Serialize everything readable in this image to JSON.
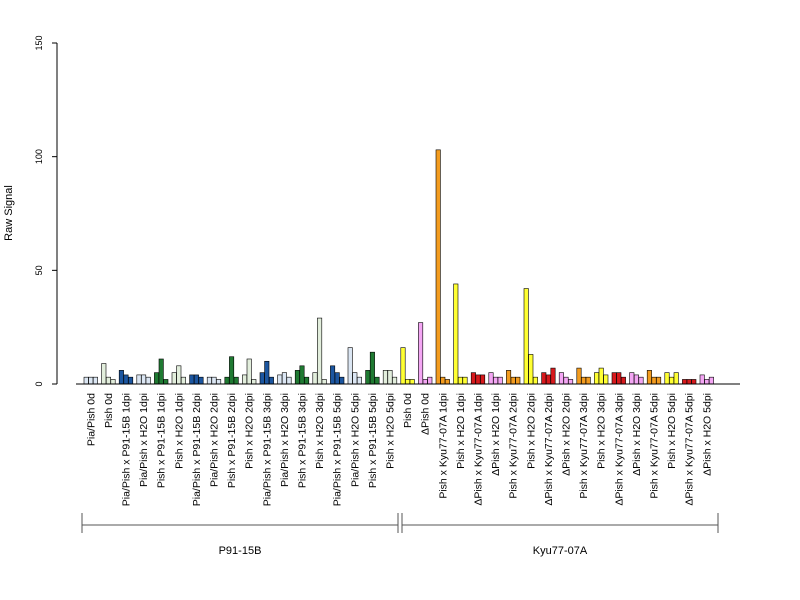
{
  "chart_data": {
    "type": "bar",
    "ylabel": "Raw Signal",
    "ylim": [
      0,
      150
    ],
    "yticks": [
      0,
      50,
      100,
      150
    ],
    "bars_per_group": 3,
    "categories": [
      "Pia/Pish 0d",
      "Pish 0d",
      "Pia/Pish x P91-15B 1dpi",
      "Pia/Pish x H2O 1dpi",
      "Pish x P91-15B 1dpi",
      "Pish x H2O 1dpi",
      "Pia/Pish x P91-15B 2dpi",
      "Pia/Pish x H2O 2dpi",
      "Pish x P91-15B 2dpi",
      "Pish x H2O 2dpi",
      "Pia/Pish x P91-15B 3dpi",
      "Pia/Pish x H2O 3dpi",
      "Pish x P91-15B 3dpi",
      "Pish x H2O 3dpi",
      "Pia/Pish x P91-15B 5dpi",
      "Pia/Pish x H2O 5dpi",
      "Pish x P91-15B 5dpi",
      "Pish x H2O 5dpi",
      "Pish 0d",
      "ΔPish 0d",
      "Pish x Kyu77-07A 1dpi",
      "Pish x H2O 1dpi",
      "ΔPish x Kyu77-07A 1dpi",
      "ΔPish x H2O 1dpi",
      "Pish x Kyu77-07A 2dpi",
      "Pish x H2O 2dpi",
      "ΔPish x Kyu77-07A 2dpi",
      "ΔPish x H2O 2dpi",
      "Pish x Kyu77-07A 3dpi",
      "Pish x H2O 3dpi",
      "ΔPish x Kyu77-07A 3dpi",
      "ΔPish x H2O 3dpi",
      "Pish x Kyu77-07A 5dpi",
      "Pish x H2O 5dpi",
      "ΔPish x Kyu77-07A 5dpi",
      "ΔPish x H2O 5dpi"
    ],
    "colors": [
      "#dbe6f3",
      "#e2eedc",
      "#1c56a0",
      "#dbe6f3",
      "#1f7a32",
      "#e2eedc",
      "#1c56a0",
      "#dbe6f3",
      "#1f7a32",
      "#e2eedc",
      "#1c56a0",
      "#dbe6f3",
      "#1f7a32",
      "#e2eedc",
      "#1c56a0",
      "#dbe6f3",
      "#1f7a32",
      "#e2eedc",
      "#ffff33",
      "#f4a6f4",
      "#f39c1f",
      "#ffff33",
      "#d7191c",
      "#f4a6f4",
      "#f39c1f",
      "#ffff33",
      "#d7191c",
      "#f4a6f4",
      "#f39c1f",
      "#ffff33",
      "#d7191c",
      "#f4a6f4",
      "#f39c1f",
      "#ffff33",
      "#d7191c",
      "#f4a6f4"
    ],
    "values": [
      [
        3,
        3,
        3
      ],
      [
        9,
        3,
        2
      ],
      [
        6,
        4,
        3
      ],
      [
        4,
        4,
        3
      ],
      [
        5,
        11,
        2
      ],
      [
        5,
        8,
        3
      ],
      [
        4,
        4,
        3
      ],
      [
        3,
        3,
        2
      ],
      [
        3,
        12,
        3
      ],
      [
        4,
        11,
        2
      ],
      [
        5,
        10,
        3
      ],
      [
        4,
        5,
        3
      ],
      [
        6,
        8,
        3
      ],
      [
        5,
        29,
        2
      ],
      [
        8,
        5,
        3
      ],
      [
        16,
        5,
        3
      ],
      [
        6,
        14,
        3
      ],
      [
        6,
        6,
        3
      ],
      [
        16,
        2,
        2
      ],
      [
        27,
        2,
        3
      ],
      [
        103,
        3,
        2
      ],
      [
        44,
        3,
        3
      ],
      [
        5,
        4,
        4
      ],
      [
        5,
        3,
        3
      ],
      [
        6,
        3,
        3
      ],
      [
        42,
        13,
        3
      ],
      [
        5,
        4,
        7
      ],
      [
        5,
        3,
        2
      ],
      [
        7,
        3,
        3
      ],
      [
        5,
        7,
        4
      ],
      [
        5,
        5,
        3
      ],
      [
        5,
        4,
        3
      ],
      [
        6,
        3,
        3
      ],
      [
        5,
        3,
        5
      ],
      [
        2,
        2,
        2
      ],
      [
        4,
        2,
        3
      ]
    ],
    "groups": [
      {
        "name": "P91-15B",
        "from": 0,
        "to": 17
      },
      {
        "name": "Kyu77-07A",
        "from": 18,
        "to": 35
      }
    ]
  }
}
